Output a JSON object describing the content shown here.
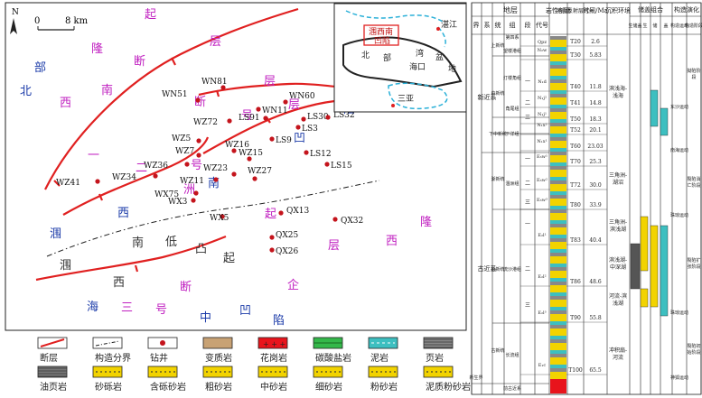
{
  "map": {
    "scale_zero": "0",
    "scale_label": "8 km",
    "north": "N",
    "regions": [
      {
        "text": "起",
        "color": "#c020c0"
      },
      {
        "text": "层",
        "color": "#c020c0"
      },
      {
        "text": "隆",
        "color": "#c020c0"
      },
      {
        "text": "断",
        "color": "#c020c0"
      },
      {
        "text": "部",
        "color": "#1a3aa8"
      },
      {
        "text": "北",
        "color": "#1a3aa8"
      },
      {
        "text": "南",
        "color": "#c020c0"
      },
      {
        "text": "西",
        "color": "#c020c0"
      },
      {
        "text": "层",
        "color": "#c020c0"
      },
      {
        "text": "断",
        "color": "#c020c0"
      },
      {
        "text": "层",
        "color": "#c020c0"
      },
      {
        "text": "号",
        "color": "#c020c0"
      },
      {
        "text": "陷",
        "color": "#1a3aa8"
      },
      {
        "text": "凹",
        "color": "#1a3aa8"
      },
      {
        "text": "一",
        "color": "#c020c0"
      },
      {
        "text": "二",
        "color": "#c020c0"
      },
      {
        "text": "号",
        "color": "#c020c0"
      },
      {
        "text": "南",
        "color": "#1a3aa8"
      },
      {
        "text": "洲",
        "color": "#c020c0"
      },
      {
        "text": "西",
        "color": "#1a3aa8"
      },
      {
        "text": "起",
        "color": "#c020c0"
      },
      {
        "text": "涠",
        "color": "#1a3aa8"
      },
      {
        "text": "南",
        "color": "#333333"
      },
      {
        "text": "低",
        "color": "#333333"
      },
      {
        "text": "凸",
        "color": "#333333"
      },
      {
        "text": "起",
        "color": "#333333"
      },
      {
        "text": "层",
        "color": "#c020c0"
      },
      {
        "text": "西",
        "color": "#c020c0"
      },
      {
        "text": "隆",
        "color": "#c020c0"
      },
      {
        "text": "涠",
        "color": "#333333"
      },
      {
        "text": "西",
        "color": "#333333"
      },
      {
        "text": "断",
        "color": "#c020c0"
      },
      {
        "text": "三",
        "color": "#c020c0"
      },
      {
        "text": "号",
        "color": "#c020c0"
      },
      {
        "text": "企",
        "color": "#c020c0"
      },
      {
        "text": "海",
        "color": "#1a3aa8"
      },
      {
        "text": "中",
        "color": "#1a3aa8"
      },
      {
        "text": "凹",
        "color": "#1a3aa8"
      },
      {
        "text": "陷",
        "color": "#1a3aa8"
      }
    ],
    "wells": [
      "WN81",
      "WN51",
      "WN60",
      "WN11",
      "LS91",
      "LS30",
      "LS32",
      "WZ72",
      "LS3",
      "WZ5",
      "LS9",
      "WZ16",
      "LS12",
      "WZ7",
      "WZ36",
      "LS15",
      "WZ15",
      "WZ34",
      "WZ23",
      "WZ41",
      "WZ11",
      "WZ27",
      "WX75",
      "WX3",
      "QX13",
      "QX32",
      "WX5",
      "QX25",
      "QX26"
    ],
    "inset": {
      "labels": [
        "湛江",
        "涠西南",
        "凹陷",
        "湾",
        "盆",
        "北",
        "部",
        "地",
        "海口",
        "三亚"
      ]
    }
  },
  "legend": {
    "items": [
      "断层",
      "构造分界",
      "钻井",
      "变质岩",
      "花岗岩",
      "碳酸盐岩",
      "泥岩",
      "页岩",
      "油页岩",
      "砂砾岩",
      "含砾砂岩",
      "粗砂岩",
      "中砂岩",
      "细砂岩",
      "粉砂岩",
      "泥质粉砂岩"
    ]
  },
  "column": {
    "header_top": {
      "strata": "地层",
      "lith": "岩性剖面",
      "seis": "地震反射层代号",
      "age": "时间/Ma",
      "env": "沉积环境",
      "res": "储盖组合",
      "tect": "构造演化"
    },
    "header_sub": [
      "界",
      "系",
      "统",
      "组",
      "段",
      "代号"
    ],
    "res_sub": [
      "生储盖",
      "生",
      "储",
      "盖"
    ],
    "tect_sub": [
      "构造运动",
      "构造阶段"
    ],
    "erathem": [
      "新生界"
    ],
    "systems": [
      "新近系",
      "古近系"
    ],
    "series": [
      "上新统",
      "中新统",
      "下中新统",
      "渐新统",
      "始新统",
      "古新统"
    ],
    "formations": [
      "第四系",
      "望楼港组",
      "灯楼角组",
      "角尾组",
      "下洋组",
      "涠洲组",
      "流沙港组",
      "长流组",
      "前古近系"
    ],
    "members": [
      "一",
      "二",
      "三",
      "一",
      "二",
      "三",
      "一",
      "二",
      "三"
    ],
    "codes": [
      "Qpz",
      "N₂w",
      "N₁d",
      "N₁j²",
      "N₁j¹",
      "N₁x²",
      "N₁x¹",
      "E₃w¹",
      "E₃w²",
      "E₃w³",
      "E₂l¹",
      "E₂l²",
      "E₂l³",
      "E₁c"
    ],
    "seismic": [
      "T20",
      "T30",
      "T40",
      "T41",
      "T50",
      "T52",
      "T60",
      "T70",
      "T72",
      "T80",
      "T83",
      "T86",
      "T90",
      "T100"
    ],
    "ages": [
      "2.6",
      "5.83",
      "11.8",
      "14.8",
      "18.3",
      "20.1",
      "23.03",
      "25.3",
      "30.0",
      "33.9",
      "40.4",
      "48.6",
      "55.8",
      "65.5"
    ],
    "environments": [
      "滨浅海-浅海",
      "三角洲-湖沼",
      "三角洲-滨浅湖",
      "滨浅湖-中深湖",
      "河流-滨浅湖",
      "冲积扇-河流"
    ],
    "movements": [
      "东沙运动",
      "南海运动",
      "珠琼运动Ⅱ幕",
      "珠琼运动Ⅰ幕",
      "神狐运动"
    ],
    "stages": [
      "拗陷阶段",
      "裂陷消亡阶段",
      "裂陷扩张阶段",
      "裂陷初始阶段"
    ]
  }
}
